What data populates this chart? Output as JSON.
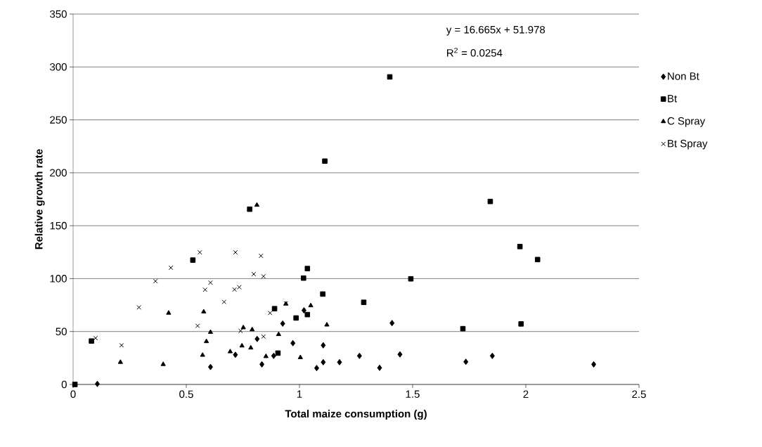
{
  "chart_data": {
    "type": "scatter",
    "xlabel": "Total maize consumption (g)",
    "ylabel": "Relative growth rate",
    "xlim": [
      0,
      2.5
    ],
    "ylim": [
      0,
      350
    ],
    "xticks": [
      0,
      0.5,
      1,
      1.5,
      2,
      2.5
    ],
    "yticks": [
      0,
      50,
      100,
      150,
      200,
      250,
      300,
      350
    ],
    "grid": "y",
    "legend": "right",
    "annotations": [
      "y = 16.665x + 51.978",
      "R$^{2}$ = 0.0254"
    ],
    "series": [
      {
        "name": "Non Bt",
        "color": "#000000",
        "marker": "diamond",
        "x": [
          0.107,
          0.607,
          0.717,
          0.813,
          0.834,
          0.886,
          0.926,
          0.971,
          1.02,
          1.076,
          1.105,
          1.105,
          1.177,
          1.265,
          1.354,
          1.409,
          1.444,
          1.735,
          1.852,
          2.3
        ],
        "values": [
          0.5,
          16.5,
          28,
          43,
          19,
          27,
          57.5,
          39,
          70,
          15.5,
          37,
          21,
          21,
          27,
          15.7,
          58,
          28.4,
          21.4,
          27,
          19
        ]
      },
      {
        "name": "Bt",
        "color": "#000000",
        "marker": "square",
        "x": [
          0.008,
          0.081,
          0.529,
          0.78,
          0.89,
          0.905,
          0.985,
          1.018,
          1.035,
          1.035,
          1.103,
          1.112,
          1.284,
          1.399,
          1.492,
          1.722,
          1.843,
          1.974,
          1.979,
          2.052
        ],
        "values": [
          0,
          41,
          117.5,
          165.6,
          71.6,
          29.6,
          62.8,
          100.5,
          109.5,
          66,
          85.4,
          211,
          77.6,
          290.6,
          99.8,
          52.7,
          172.9,
          130.3,
          57.2,
          118
        ]
      },
      {
        "name": "C Spray",
        "color": "#000000",
        "marker": "triangle",
        "x": [
          0.209,
          0.398,
          0.422,
          0.572,
          0.577,
          0.589,
          0.607,
          0.694,
          0.746,
          0.752,
          0.785,
          0.791,
          0.812,
          0.852,
          0.908,
          0.94,
          1.004,
          1.05,
          1.121
        ],
        "values": [
          21,
          19,
          67.5,
          27.7,
          68.7,
          40.6,
          49.4,
          31,
          36.5,
          53.7,
          34.6,
          51.8,
          169.5,
          26.5,
          47.3,
          76.1,
          25.5,
          74.5,
          56.3
        ]
      },
      {
        "name": "Bt Spray",
        "color": "#000000",
        "marker": "cross",
        "x": [
          0.099,
          0.214,
          0.291,
          0.364,
          0.432,
          0.55,
          0.56,
          0.583,
          0.607,
          0.667,
          0.713,
          0.717,
          0.734,
          0.74,
          0.798,
          0.83,
          0.841,
          0.841,
          0.87,
          0.94
        ],
        "values": [
          43.7,
          37,
          72.8,
          97.6,
          110.3,
          55.4,
          124.8,
          89.5,
          96.2,
          78,
          89.7,
          124.8,
          91.9,
          50.6,
          104.3,
          121.5,
          102.1,
          45.3,
          67.5,
          76.6
        ]
      }
    ]
  }
}
